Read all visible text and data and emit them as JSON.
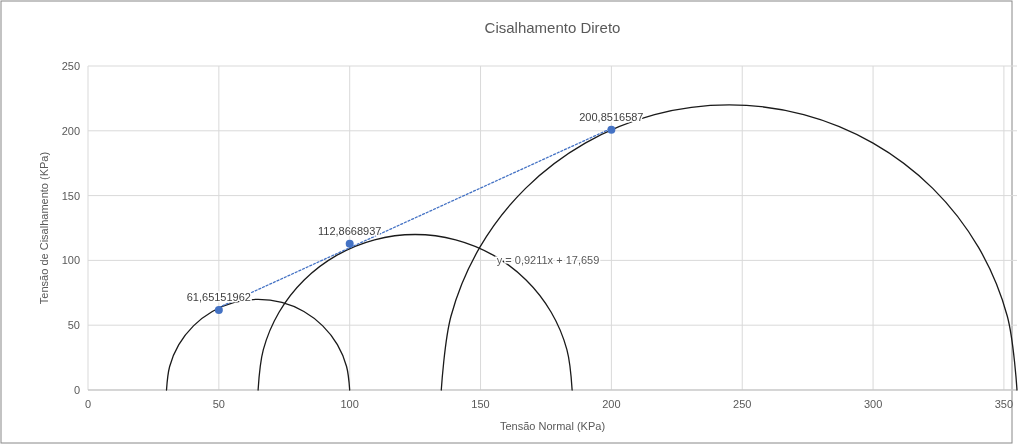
{
  "chart_data": {
    "type": "scatter",
    "title": "Cisalhamento Direto",
    "xlabel": "Tensão Normal (KPa)",
    "ylabel": "Tensão de Cisalhamento (KPa)",
    "xlim": [
      0,
      355
    ],
    "xticks": [
      0,
      50,
      100,
      150,
      200,
      250,
      300,
      350
    ],
    "ylim": [
      0,
      250
    ],
    "yticks": [
      0,
      50,
      100,
      150,
      200,
      250
    ],
    "grid": true,
    "annotations": [
      "y = 0,9211x + 17,659"
    ],
    "series": [
      {
        "type": "line",
        "color": "#1a1a1a",
        "marker": "none",
        "line_style": "solid",
        "x": [
          30,
          31.2,
          34.7,
          40.3,
          47.5,
          55.9,
          65,
          74.1,
          82.5,
          89.7,
          95.3,
          98.8,
          100
        ],
        "values": [
          0,
          18.1,
          35,
          49.5,
          60.6,
          67.6,
          70,
          67.6,
          60.6,
          49.5,
          35,
          18.1,
          0
        ]
      },
      {
        "type": "line",
        "color": "#1a1a1a",
        "marker": "none",
        "line_style": "solid",
        "x": [
          65,
          67,
          73,
          82.6,
          95,
          109.5,
          125,
          140.5,
          155,
          167.4,
          177,
          183,
          185
        ],
        "values": [
          0,
          31.1,
          60,
          84.9,
          103.9,
          115.9,
          120,
          115.9,
          103.9,
          84.9,
          60,
          31.1,
          0
        ]
      },
      {
        "type": "line",
        "color": "#1a1a1a",
        "marker": "none",
        "line_style": "solid",
        "x": [
          135,
          138.7,
          149.7,
          167.2,
          190,
          216.5,
          245,
          273.5,
          300,
          322.8,
          340.3,
          351.3,
          355
        ],
        "values": [
          0,
          56.9,
          110,
          155.6,
          190.5,
          212.5,
          220,
          212.5,
          190.5,
          155.6,
          110,
          56.9,
          0
        ]
      },
      {
        "type": "line",
        "color": "#4472c4",
        "marker": "none",
        "line_style": "dotted",
        "x": [
          50,
          200
        ],
        "values": [
          63.7,
          201.9
        ]
      },
      {
        "color": "#4472c4",
        "marker": "circle",
        "x": [
          50,
          100,
          200
        ],
        "values": [
          61.65,
          112.87,
          200.85
        ],
        "value_labels": [
          "61,65151962",
          "112,8668937",
          "200,8516587"
        ]
      }
    ]
  }
}
